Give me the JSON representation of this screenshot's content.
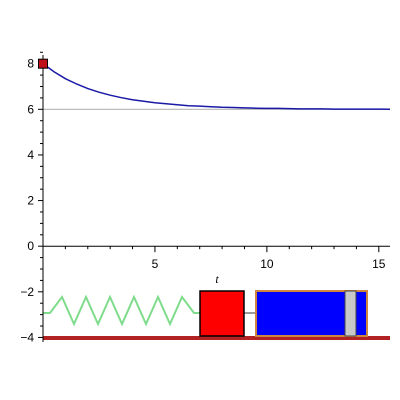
{
  "chart_data": {
    "type": "line",
    "title": "",
    "xlabel": "t",
    "ylabel": "",
    "xlim": [
      0,
      15.5
    ],
    "ylim": [
      -4.2,
      8.6
    ],
    "x_ticks": [
      {
        "value": 5,
        "label": "5"
      },
      {
        "value": 10,
        "label": "10"
      },
      {
        "value": 15,
        "label": "15"
      }
    ],
    "y_ticks": [
      {
        "value": 8,
        "label": "8"
      },
      {
        "value": 6,
        "label": "6"
      },
      {
        "value": 4,
        "label": "4"
      },
      {
        "value": 2,
        "label": "2"
      },
      {
        "value": 0,
        "label": "0"
      },
      {
        "value": -2,
        "label": "−2"
      },
      {
        "value": -4,
        "label": "−4"
      }
    ],
    "series": [
      {
        "color": "#1a1aa6",
        "x": [
          0,
          0.5,
          1,
          1.5,
          2,
          2.5,
          3,
          3.5,
          4,
          4.5,
          5,
          5.5,
          6,
          6.5,
          7,
          7.5,
          8,
          8.5,
          9,
          9.5,
          10,
          10.5,
          11,
          11.5,
          12,
          12.5,
          13,
          13.5,
          14,
          14.5,
          15,
          15.5
        ],
        "y": [
          8.0,
          7.64,
          7.34,
          7.11,
          6.91,
          6.75,
          6.62,
          6.51,
          6.42,
          6.35,
          6.29,
          6.24,
          6.2,
          6.16,
          6.14,
          6.11,
          6.09,
          6.08,
          6.06,
          6.05,
          6.04,
          6.04,
          6.03,
          6.02,
          6.02,
          6.02,
          6.01,
          6.01,
          6.01,
          6.01,
          6.01,
          6.0
        ]
      }
    ],
    "reference_lines": [
      {
        "y": 6,
        "color": "#b4b4b4"
      }
    ],
    "marker": {
      "x": 0,
      "y": 8,
      "color": "#c0101a"
    },
    "grid": false,
    "legend": "none"
  },
  "animation": {
    "spring_color": "#7fdc8c",
    "axle_color": "#9a9a9a",
    "floor_color": "#b22222",
    "mass_color": "#ff0000",
    "dashpot_body_color": "#0000ff",
    "dashpot_border_color": "#cd853f",
    "piston_color": "#c8c8c8"
  }
}
